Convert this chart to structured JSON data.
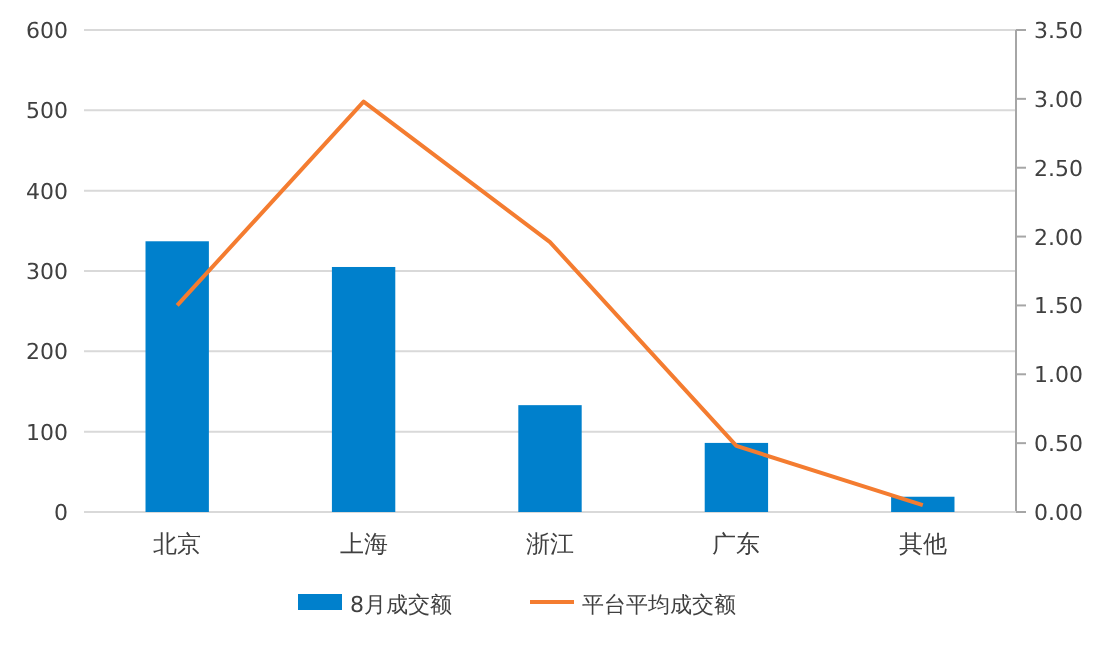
{
  "chart_data": {
    "type": "bar",
    "categories": [
      "北京",
      "上海",
      "浙江",
      "广东",
      "其他"
    ],
    "series": [
      {
        "name": "8月成交额",
        "color": "#0080cc",
        "values": [
          337,
          305,
          133,
          86,
          19
        ]
      },
      {
        "name": "平台平均成交额",
        "type": "line",
        "axis": "y2",
        "color": "#f47c30",
        "values": [
          1.5,
          2.98,
          1.96,
          0.48,
          0.05
        ]
      }
    ],
    "ylim": [
      0,
      600
    ],
    "yticks": [
      0,
      100,
      200,
      300,
      400,
      500,
      600
    ],
    "y2lim": [
      0,
      3.5
    ],
    "y2ticks": [
      {
        "value": 0,
        "label": "0.00"
      },
      {
        "value": 0.5,
        "label": "0.50"
      },
      {
        "value": 1,
        "label": "1.00"
      },
      {
        "value": 1.5,
        "label": "1.50"
      },
      {
        "value": 2,
        "label": "2.00"
      },
      {
        "value": 2.5,
        "label": "2.50"
      },
      {
        "value": 3,
        "label": "3.00"
      },
      {
        "value": 3.5,
        "label": "3.50"
      }
    ],
    "grid": "y",
    "legend": "bottom",
    "marker": "none",
    "line_style": "solid"
  }
}
